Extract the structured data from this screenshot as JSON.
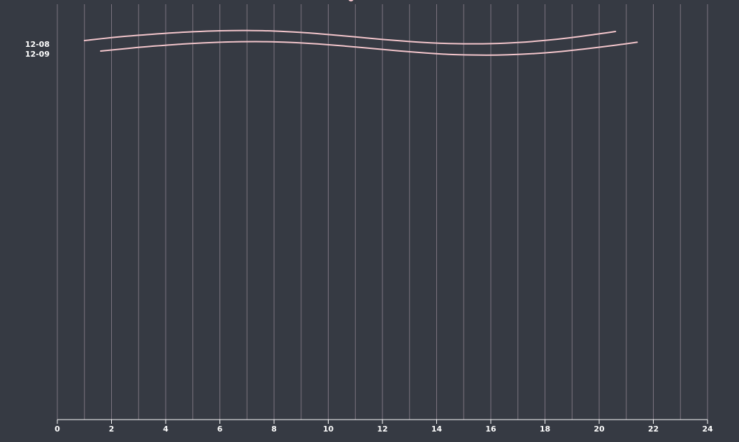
{
  "chart_data": {
    "type": "line",
    "title": "",
    "xlabel": "",
    "ylabel": "",
    "xlim": [
      0,
      24
    ],
    "x_ticks": [
      "0",
      "2",
      "4",
      "6",
      "8",
      "10",
      "12",
      "14",
      "16",
      "18",
      "20",
      "22",
      "24"
    ],
    "grid": "vertical, every 1",
    "colors": {
      "background": "#363a43",
      "line": "#f4c6cc",
      "grid": "#7c7480",
      "text": "#ffffff"
    },
    "series": [
      {
        "name": "12-08",
        "points": [
          [
            1.0,
            0.45
          ],
          [
            2.0,
            0.66
          ],
          [
            3.0,
            0.83
          ],
          [
            4.0,
            0.97
          ],
          [
            5.0,
            1.08
          ],
          [
            6.0,
            1.15
          ],
          [
            7.0,
            1.17
          ],
          [
            8.0,
            1.13
          ],
          [
            9.0,
            1.03
          ],
          [
            10.0,
            0.88
          ],
          [
            11.0,
            0.71
          ],
          [
            12.0,
            0.53
          ],
          [
            13.0,
            0.38
          ],
          [
            14.0,
            0.27
          ],
          [
            15.0,
            0.22
          ],
          [
            16.0,
            0.23
          ],
          [
            17.0,
            0.31
          ],
          [
            18.0,
            0.46
          ],
          [
            19.0,
            0.67
          ],
          [
            20.0,
            0.93
          ],
          [
            20.6,
            1.1
          ]
        ]
      },
      {
        "name": "12-09",
        "points": [
          [
            1.6,
            0.45
          ],
          [
            2.6,
            0.64
          ],
          [
            3.6,
            0.81
          ],
          [
            4.6,
            0.95
          ],
          [
            5.6,
            1.05
          ],
          [
            6.6,
            1.11
          ],
          [
            7.6,
            1.12
          ],
          [
            8.6,
            1.07
          ],
          [
            9.6,
            0.96
          ],
          [
            10.6,
            0.81
          ],
          [
            11.6,
            0.64
          ],
          [
            12.6,
            0.46
          ],
          [
            13.6,
            0.31
          ],
          [
            14.6,
            0.2
          ],
          [
            15.6,
            0.16
          ],
          [
            16.6,
            0.18
          ],
          [
            17.6,
            0.27
          ],
          [
            18.6,
            0.42
          ],
          [
            19.6,
            0.63
          ],
          [
            20.6,
            0.87
          ],
          [
            21.4,
            1.08
          ]
        ]
      }
    ]
  }
}
